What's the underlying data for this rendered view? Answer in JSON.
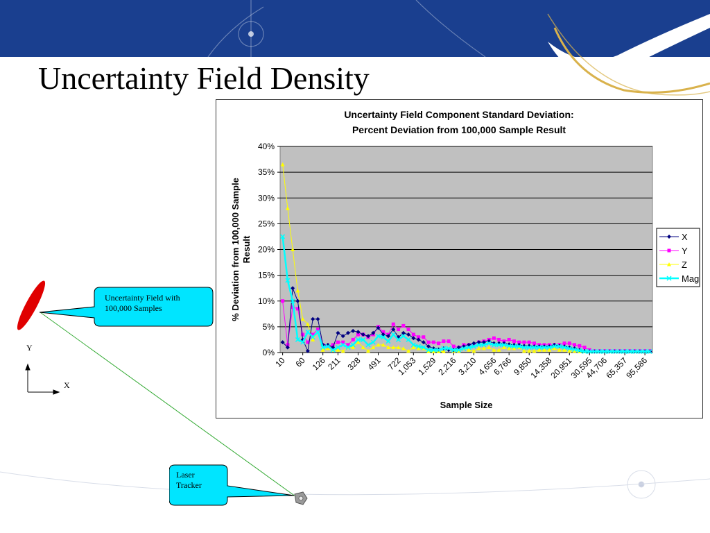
{
  "slide": {
    "title": "Uncertainty Field Density"
  },
  "callouts": {
    "field_line1": "Uncertainty Field with",
    "field_line2": "100,000 Samples",
    "tracker_line1": "Laser",
    "tracker_line2": "Tracker"
  },
  "axes_legend": {
    "y": "Y",
    "x": "X"
  },
  "colors": {
    "banner_blue": "#1a3f8f",
    "plot_bg": "#c0c0c0",
    "x_series": "#000080",
    "y_series": "#ff00ff",
    "z_series": "#ffff00",
    "mag_series": "#00ffff",
    "callout_fill": "#00e5ff",
    "point_cloud": "#e00000",
    "beam": "#33aa33"
  },
  "chart_data": {
    "type": "line",
    "title": "Uncertainty Field Component Standard Deviation:",
    "subtitle": "Percent Deviation from 100,000 Sample Result",
    "xlabel": "Sample Size",
    "ylabel": "% Deviation from 100,000 Sample Result",
    "ylim": [
      0,
      40
    ],
    "y_ticks": [
      "0%",
      "5%",
      "10%",
      "15%",
      "20%",
      "25%",
      "30%",
      "35%",
      "40%"
    ],
    "x_tick_labels": [
      "10",
      "60",
      "126",
      "211",
      "328",
      "491",
      "722",
      "1,053",
      "1,529",
      "2,216",
      "3,210",
      "4,656",
      "6,766",
      "9,850",
      "14,358",
      "20,951",
      "30,595",
      "44,706",
      "65,357",
      "95,586"
    ],
    "grid": "horizontal",
    "legend_position": "right",
    "series": [
      {
        "name": "X",
        "marker": "diamond",
        "values": [
          2,
          1,
          12.5,
          10,
          2.5,
          0.3,
          6.5,
          6.5,
          1.5,
          1.5,
          1,
          3.8,
          3.2,
          3.8,
          4.2,
          4,
          3.5,
          3.2,
          3.8,
          4.8,
          3.5,
          3.2,
          4.5,
          3,
          3.8,
          3.5,
          2.8,
          2.5,
          2,
          1.2,
          0.8,
          0.6,
          0.8,
          0.5,
          0.5,
          1,
          1.2,
          1.5,
          1.8,
          2,
          2,
          2.2,
          1.8,
          1.8,
          1.8,
          1.6,
          1.5,
          1.5,
          1.3,
          1.3,
          1.2,
          1.2,
          1.2,
          1.2,
          1.5,
          1.3,
          1.2,
          1,
          0.8,
          0.5,
          0.3,
          0.2,
          0.2,
          0.2,
          0.2,
          0.2,
          0.2,
          0.2,
          0.2,
          0.2,
          0.2,
          0.2,
          0.2,
          0.2
        ]
      },
      {
        "name": "Y",
        "marker": "square",
        "values": [
          10,
          1.5,
          8.8,
          8.5,
          3.5,
          2,
          3.5,
          4.5,
          1.5,
          1.2,
          1.5,
          2,
          2,
          1.5,
          2.5,
          3.5,
          3.5,
          3,
          3.5,
          5,
          4,
          3.5,
          5.5,
          4.5,
          5.2,
          4.5,
          3.5,
          3,
          3,
          2,
          2,
          1.8,
          2.2,
          2.2,
          1.2,
          1,
          1.5,
          1.5,
          1.5,
          2,
          2.2,
          2.5,
          2.8,
          2.5,
          2.2,
          2.5,
          2.2,
          2,
          2,
          2,
          1.8,
          1.5,
          1.5,
          1.5,
          1.5,
          1.5,
          1.8,
          1.8,
          1.5,
          1.3,
          1,
          0.5,
          0.3,
          0.3,
          0.3,
          0.3,
          0.3,
          0.3,
          0.3,
          0.3,
          0.3,
          0.3,
          0.3,
          0.3
        ]
      },
      {
        "name": "Z",
        "marker": "triangle",
        "values": [
          36.5,
          28,
          20,
          12,
          6.5,
          5.5,
          2.5,
          4,
          0.5,
          0.8,
          0.5,
          0.5,
          0.3,
          1,
          1,
          2,
          1,
          0.3,
          1,
          1.5,
          1.5,
          1,
          1,
          1,
          0.8,
          0.3,
          1,
          0.8,
          0.8,
          0.2,
          0.2,
          0.2,
          0.2,
          0.8,
          0.3,
          0.3,
          0.8,
          0.5,
          0.3,
          0.8,
          0.8,
          1,
          0.5,
          0.5,
          1,
          0.8,
          0.8,
          1,
          0.3,
          0.3,
          0.3,
          0.5,
          0.5,
          0.5,
          0.8,
          0.5,
          0.5,
          0.3,
          0.3,
          0.2,
          0.2,
          0.2,
          0.2,
          0.2,
          0.2,
          0.2,
          0.2,
          0.2,
          0.2,
          0.2,
          0.2,
          0.2,
          0.2,
          0.2
        ]
      },
      {
        "name": "Mag",
        "marker": "x",
        "values": [
          22.5,
          14,
          10,
          2.5,
          2,
          4,
          3,
          4,
          1,
          1.2,
          0.5,
          1,
          1.5,
          1,
          1.5,
          2.5,
          2.5,
          1.5,
          2,
          3.2,
          3,
          2.2,
          3.5,
          2.5,
          3.2,
          2.5,
          1.5,
          1.2,
          1,
          0.5,
          0.5,
          0.5,
          0.8,
          0.8,
          0.5,
          0.5,
          0.8,
          1,
          1.2,
          1.5,
          1.5,
          1.8,
          1.5,
          1.5,
          1.5,
          1.3,
          1.2,
          1.2,
          1,
          1,
          1,
          1,
          1,
          1,
          1.2,
          1.2,
          1,
          0.8,
          0.6,
          0.4,
          0.2,
          0.2,
          0.2,
          0.2,
          0.2,
          0.2,
          0.2,
          0.2,
          0.2,
          0.2,
          0.2,
          0.2,
          0.2,
          0.2
        ]
      }
    ]
  }
}
